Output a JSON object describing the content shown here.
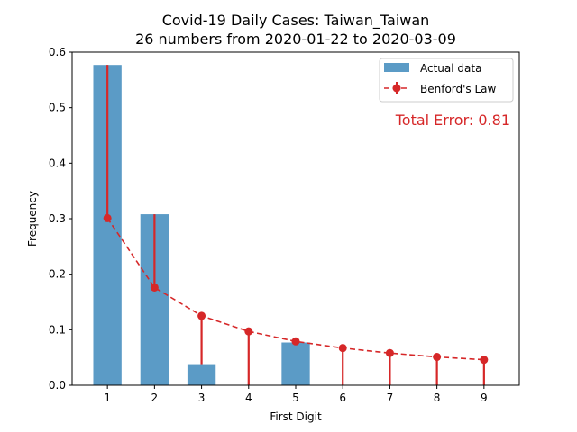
{
  "chart_data": {
    "type": "bar",
    "title_line1": "Covid-19 Daily Cases: Taiwan_Taiwan",
    "title_line2": "26 numbers from 2020-01-22 to 2020-03-09",
    "xlabel": "First Digit",
    "ylabel": "Frequency",
    "categories": [
      "1",
      "2",
      "3",
      "4",
      "5",
      "6",
      "7",
      "8",
      "9"
    ],
    "x_range": [
      0.25,
      9.75
    ],
    "ylim": [
      0,
      0.6
    ],
    "yticks": [
      "0.0",
      "0.1",
      "0.2",
      "0.3",
      "0.4",
      "0.5",
      "0.6"
    ],
    "series": [
      {
        "name": "Actual data",
        "kind": "bar",
        "color": "#5b9bc6",
        "values": [
          0.577,
          0.308,
          0.038,
          0.0,
          0.077,
          0.0,
          0.0,
          0.0,
          0.0
        ]
      },
      {
        "name": "Benford's Law",
        "kind": "line",
        "color": "#d62728",
        "values": [
          0.301,
          0.176,
          0.125,
          0.097,
          0.079,
          0.067,
          0.058,
          0.051,
          0.046
        ]
      }
    ],
    "annotation": "Total Error: 0.81",
    "legend_position": "top-right",
    "grid": false
  }
}
